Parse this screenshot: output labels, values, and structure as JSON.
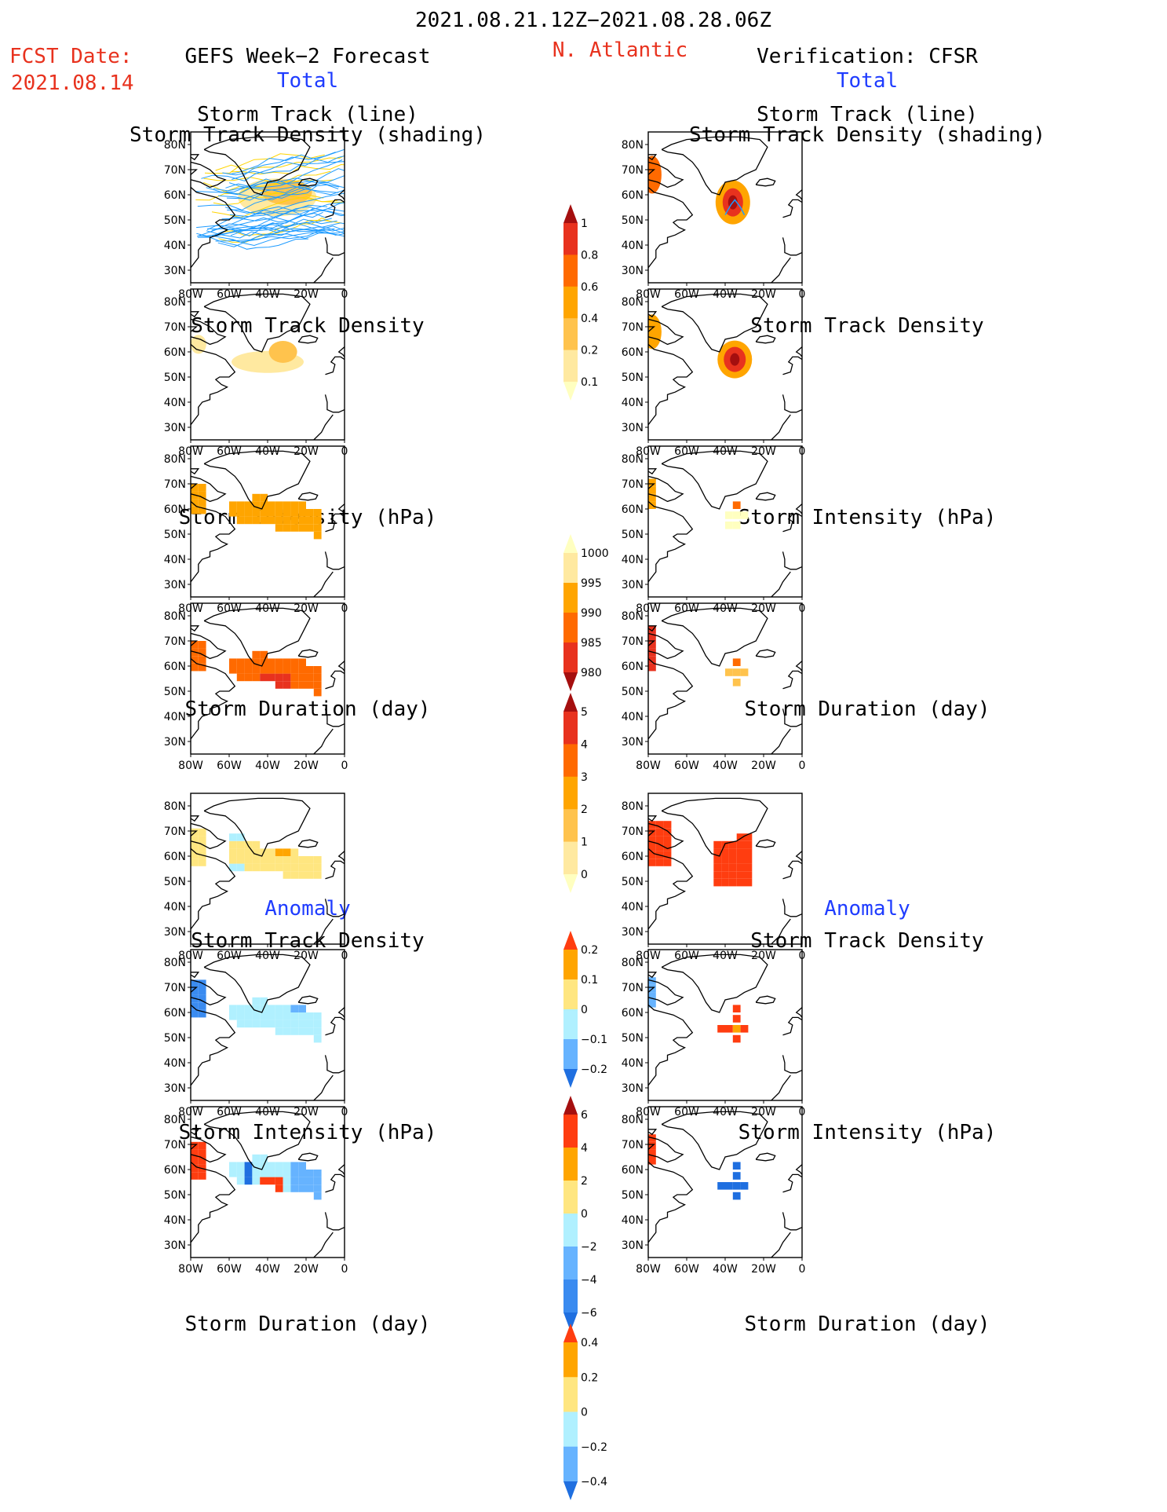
{
  "header": {
    "period": "2021.08.21.12Z−2021.08.28.06Z",
    "region": "N. Atlantic",
    "fcst_label": "FCST Date:",
    "fcst_date": "2021.08.14",
    "left_title": "GEFS Week−2 Forecast",
    "right_title": "Verification: CFSR",
    "section_total": "Total",
    "section_anomaly": "Anomaly"
  },
  "panel_titles": {
    "track_line": "Storm Track (line)",
    "track_shading": "Storm Track Density (shading)",
    "density": "Storm Track Density",
    "intensity": "Storm Intensity (hPa)",
    "duration": "Storm Duration (day)"
  },
  "map_axes": {
    "lat_labels": [
      "80N",
      "70N",
      "60N",
      "50N",
      "40N",
      "30N"
    ],
    "lon_labels": [
      "80W",
      "60W",
      "40W",
      "20W",
      "0"
    ]
  },
  "colorbars": [
    {
      "id": "track_density",
      "labels": [
        "1",
        "0.8",
        "0.6",
        "0.4",
        "0.2",
        "0.1"
      ],
      "colors": [
        "#a50f0f",
        "#e8321e",
        "#ff6a00",
        "#ffa500",
        "#ffc34d",
        "#ffe9a0",
        "#ffffc0"
      ]
    },
    {
      "id": "intensity",
      "labels": [
        "1000",
        "995",
        "990",
        "985",
        "980"
      ],
      "colors": [
        "#ffffc0",
        "#ffe9a0",
        "#ffa500",
        "#ff6a00",
        "#e8321e",
        "#a50f0f"
      ]
    },
    {
      "id": "duration",
      "labels": [
        "5",
        "4",
        "3",
        "2",
        "1",
        "0"
      ],
      "colors": [
        "#a50f0f",
        "#e8321e",
        "#ff6a00",
        "#ffa500",
        "#ffc34d",
        "#ffe9a0",
        "#ffffc0"
      ]
    },
    {
      "id": "density_anom",
      "labels": [
        "0.2",
        "0.1",
        "0",
        "−0.1",
        "−0.2"
      ],
      "colors": [
        "#ff3d10",
        "#ffa500",
        "#ffe680",
        "#b0f0ff",
        "#66b3ff",
        "#1f6fe0"
      ]
    },
    {
      "id": "intensity_anom",
      "labels": [
        "6",
        "4",
        "2",
        "0",
        "−2",
        "−4",
        "−6"
      ],
      "colors": [
        "#a50f0f",
        "#ff3d10",
        "#ffa500",
        "#ffe680",
        "#b0f0ff",
        "#66b3ff",
        "#3a8bf0",
        "#1f6fe0"
      ]
    },
    {
      "id": "duration_anom",
      "labels": [
        "0.4",
        "0.2",
        "0",
        "−0.2",
        "−0.4"
      ],
      "colors": [
        "#ff3d10",
        "#ffa500",
        "#ffe680",
        "#b0f0ff",
        "#66b3ff",
        "#1f6fe0"
      ]
    }
  ],
  "colors": {
    "red_text": "#e8321e",
    "blue_text": "#1f3cff",
    "track_forecast": "#1e9bff",
    "track_obs": "#1e9bff"
  }
}
